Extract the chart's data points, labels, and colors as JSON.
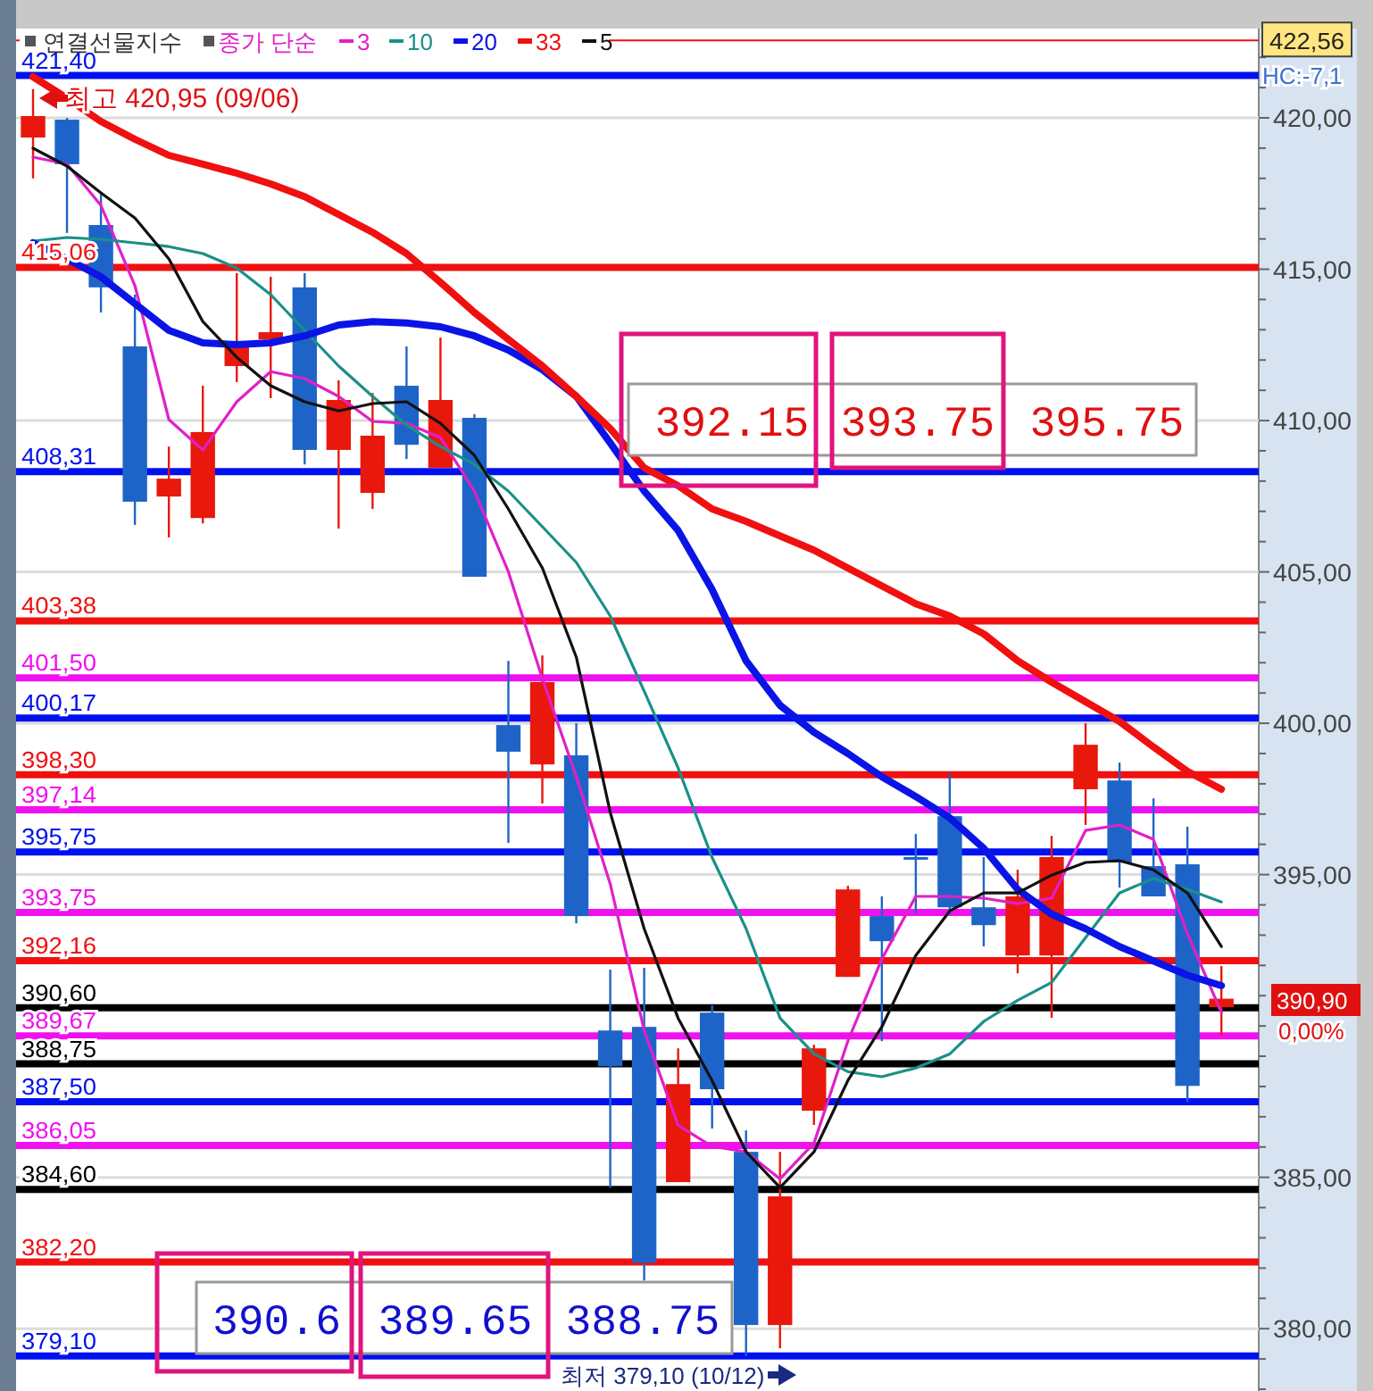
{
  "chart_data": {
    "type": "candlestick",
    "title": "연결선물지수",
    "legend_title": "종가 단순",
    "legend": "top left",
    "grid": "y",
    "categories": [
      null,
      null,
      null,
      null,
      null,
      null,
      null,
      null,
      null,
      null,
      null,
      null,
      null,
      null,
      null,
      null,
      null,
      null,
      null,
      null,
      null,
      null,
      null,
      null,
      null,
      null,
      null,
      null,
      null,
      null,
      null,
      null,
      null,
      null,
      null,
      null
    ],
    "ohlc": [
      [
        419.35,
        420.95,
        418.0,
        420.06
      ],
      [
        419.94,
        420.0,
        416.2,
        418.47
      ],
      [
        416.46,
        417.52,
        413.57,
        414.4
      ],
      [
        412.45,
        414.16,
        406.55,
        407.32
      ],
      [
        407.49,
        409.14,
        406.14,
        408.08
      ],
      [
        406.78,
        411.15,
        406.6,
        409.62
      ],
      [
        411.8,
        414.87,
        411.27,
        412.57
      ],
      [
        412.68,
        414.75,
        410.74,
        412.92
      ],
      [
        414.4,
        414.87,
        408.55,
        409.03
      ],
      [
        409.03,
        411.33,
        406.43,
        410.68
      ],
      [
        407.61,
        410.91,
        407.08,
        409.5
      ],
      [
        411.15,
        412.45,
        408.73,
        409.2
      ],
      [
        408.44,
        412.74,
        408.44,
        410.68
      ],
      [
        410.09,
        410.21,
        404.84,
        404.84
      ],
      [
        399.94,
        402.06,
        396.05,
        399.06
      ],
      [
        398.64,
        402.24,
        397.35,
        401.36
      ],
      [
        398.94,
        400.0,
        393.39,
        393.63
      ],
      [
        389.85,
        391.86,
        384.66,
        388.67
      ],
      [
        389.97,
        391.92,
        381.59,
        382.18
      ],
      [
        384.84,
        389.26,
        384.84,
        388.08
      ],
      [
        390.44,
        390.68,
        386.61,
        387.91
      ],
      [
        385.84,
        386.55,
        379.1,
        380.12
      ],
      [
        380.12,
        385.84,
        379.35,
        384.37
      ],
      [
        387.2,
        389.38,
        386.73,
        389.26
      ],
      [
        391.62,
        394.63,
        391.62,
        394.51
      ],
      [
        393.63,
        394.28,
        389.5,
        392.8
      ],
      [
        395.58,
        396.34,
        393.69,
        395.52
      ],
      [
        396.93,
        398.35,
        393.69,
        393.92
      ],
      [
        393.92,
        395.58,
        392.63,
        393.33
      ],
      [
        392.33,
        395.16,
        391.74,
        394.28
      ],
      [
        392.33,
        396.28,
        390.27,
        395.58
      ],
      [
        397.82,
        400.0,
        396.64,
        399.29
      ],
      [
        398.11,
        398.7,
        394.57,
        395.4
      ],
      [
        395.28,
        397.52,
        394.28,
        394.28
      ],
      [
        395.34,
        396.58,
        387.49,
        388.02
      ],
      [
        390.62,
        391.98,
        389.68,
        390.9
      ]
    ],
    "colors": [
      "#e8180c",
      "#1e64c8",
      "#1e64c8",
      "#1e64c8",
      "#e8180c",
      "#e8180c",
      "#e8180c",
      "#e8180c",
      "#1e64c8",
      "#e8180c",
      "#e8180c",
      "#1e64c8",
      "#e8180c",
      "#1e64c8",
      "#1e64c8",
      "#e8180c",
      "#1e64c8",
      "#1e64c8",
      "#1e64c8",
      "#e8180c",
      "#1e64c8",
      "#1e64c8",
      "#e8180c",
      "#e8180c",
      "#e8180c",
      "#1e64c8",
      "#1e64c8",
      "#1e64c8",
      "#1e64c8",
      "#e8180c",
      "#e8180c",
      "#e8180c",
      "#1e64c8",
      "#1e64c8",
      "#1e64c8",
      "#e8180c"
    ],
    "series": [
      {
        "name": "3",
        "type": "line",
        "color": "#e020c8",
        "values": [
          418.7,
          418.47,
          417.11,
          414.45,
          410.03,
          409.03,
          410.62,
          411.62,
          411.39,
          410.8,
          409.97,
          409.91,
          409.44,
          407.67,
          405.01,
          401.47,
          398.23,
          394.69,
          389.85,
          386.72,
          386.02,
          385.84,
          384.95,
          386.13,
          389.5,
          392.21,
          394.28,
          394.28,
          394.22,
          394.04,
          394.22,
          396.46,
          396.64,
          396.17,
          393.04,
          390.44
        ]
      },
      {
        "name": "10",
        "type": "line",
        "color": "#1a9088",
        "values": [
          415.93,
          416.05,
          415.99,
          415.87,
          415.75,
          415.52,
          415.04,
          414.16,
          412.98,
          411.8,
          410.8,
          409.85,
          409.14,
          408.55,
          407.67,
          406.49,
          405.31,
          403.54,
          401.06,
          398.52,
          395.57,
          393.21,
          390.26,
          389.08,
          388.49,
          388.32,
          388.61,
          389.08,
          390.15,
          390.85,
          391.44,
          392.92,
          394.39,
          394.87,
          394.51,
          394.1
        ]
      },
      {
        "name": "20",
        "type": "line",
        "color": "#0a14e6",
        "values": [
          415.87,
          415.34,
          414.75,
          413.86,
          412.98,
          412.57,
          412.51,
          412.57,
          412.8,
          413.16,
          413.27,
          413.22,
          413.1,
          412.8,
          412.33,
          411.68,
          410.8,
          409.26,
          407.67,
          406.37,
          404.42,
          402.06,
          400.59,
          399.7,
          399.0,
          398.23,
          397.58,
          396.87,
          395.87,
          394.51,
          393.69,
          393.21,
          392.62,
          392.15,
          391.68,
          391.33
        ]
      },
      {
        "name": "33",
        "type": "line",
        "color": "#f01010",
        "values": [
          421.36,
          420.65,
          419.88,
          419.29,
          418.76,
          418.47,
          418.17,
          417.82,
          417.4,
          416.81,
          416.22,
          415.52,
          414.57,
          413.57,
          412.68,
          411.8,
          410.8,
          409.73,
          408.44,
          407.85,
          407.08,
          406.67,
          406.19,
          405.72,
          405.13,
          404.54,
          403.95,
          403.54,
          402.95,
          402.06,
          401.36,
          400.71,
          400.06,
          399.22,
          398.41,
          397.82
        ]
      },
      {
        "name": "5",
        "type": "line",
        "color": "#111111",
        "values": [
          419.0,
          418.41,
          417.52,
          416.69,
          415.34,
          413.27,
          412.09,
          411.15,
          410.62,
          410.32,
          410.56,
          410.62,
          409.91,
          408.85,
          407.08,
          405.13,
          402.18,
          397.05,
          393.21,
          390.26,
          388.2,
          385.84,
          384.66,
          385.84,
          388.2,
          389.97,
          392.33,
          393.8,
          394.39,
          394.39,
          394.98,
          395.4,
          395.46,
          395.16,
          394.39,
          392.62
        ]
      }
    ],
    "ylim": [
      377.94,
      422.95
    ],
    "yticks": [
      {
        "value": 378,
        "label": null
      },
      {
        "value": 379,
        "label": null
      },
      {
        "value": 380,
        "label": "380,00"
      },
      {
        "value": 381,
        "label": null
      },
      {
        "value": 382,
        "label": null
      },
      {
        "value": 383,
        "label": null
      },
      {
        "value": 384,
        "label": null
      },
      {
        "value": 385,
        "label": "385,00"
      },
      {
        "value": 386,
        "label": null
      },
      {
        "value": 387,
        "label": null
      },
      {
        "value": 388,
        "label": null
      },
      {
        "value": 389,
        "label": null
      },
      {
        "value": 390,
        "label": null
      },
      {
        "value": 391,
        "label": null
      },
      {
        "value": 392,
        "label": null
      },
      {
        "value": 393,
        "label": null
      },
      {
        "value": 394,
        "label": null
      },
      {
        "value": 395,
        "label": "395,00"
      },
      {
        "value": 396,
        "label": null
      },
      {
        "value": 397,
        "label": null
      },
      {
        "value": 398,
        "label": null
      },
      {
        "value": 399,
        "label": null
      },
      {
        "value": 400,
        "label": "400,00"
      },
      {
        "value": 401,
        "label": null
      },
      {
        "value": 402,
        "label": null
      },
      {
        "value": 403,
        "label": null
      },
      {
        "value": 404,
        "label": null
      },
      {
        "value": 405,
        "label": "405,00"
      },
      {
        "value": 406,
        "label": null
      },
      {
        "value": 407,
        "label": null
      },
      {
        "value": 408,
        "label": null
      },
      {
        "value": 409,
        "label": null
      },
      {
        "value": 410,
        "label": "410,00"
      },
      {
        "value": 411,
        "label": null
      },
      {
        "value": 412,
        "label": null
      },
      {
        "value": 413,
        "label": null
      },
      {
        "value": 414,
        "label": null
      },
      {
        "value": 415,
        "label": "415,00"
      },
      {
        "value": 416,
        "label": null
      },
      {
        "value": 417,
        "label": null
      },
      {
        "value": 418,
        "label": null
      },
      {
        "value": 419,
        "label": null
      },
      {
        "value": 420,
        "label": "420,00"
      },
      {
        "value": 421,
        "label": null
      },
      {
        "value": 422,
        "label": null
      }
    ],
    "ref_lines": [
      {
        "axis": "y",
        "value": 422.56,
        "label": "422,56",
        "color": "#f01010",
        "line_style": "solid"
      },
      {
        "axis": "y",
        "value": 421.4,
        "label": "421,40",
        "color": "#0010f0"
      },
      {
        "axis": "y",
        "value": 415.06,
        "label": "415,06",
        "color": "#f01010"
      },
      {
        "axis": "y",
        "value": 408.31,
        "label": "408,31",
        "color": "#0010f0"
      },
      {
        "axis": "y",
        "value": 403.38,
        "label": "403,38",
        "color": "#f01010"
      },
      {
        "axis": "y",
        "value": 401.5,
        "label": "401,50",
        "color": "#f010f0"
      },
      {
        "axis": "y",
        "value": 400.17,
        "label": "400,17",
        "color": "#0010f0"
      },
      {
        "axis": "y",
        "value": 398.3,
        "label": "398,30",
        "color": "#f01010"
      },
      {
        "axis": "y",
        "value": 397.14,
        "label": "397,14",
        "color": "#f010f0"
      },
      {
        "axis": "y",
        "value": 395.75,
        "label": "395,75",
        "color": "#0010f0"
      },
      {
        "axis": "y",
        "value": 393.75,
        "label": "393,75",
        "color": "#f010f0"
      },
      {
        "axis": "y",
        "value": 392.16,
        "label": "392,16",
        "color": "#f01010"
      },
      {
        "axis": "y",
        "value": 390.6,
        "label": "390,60",
        "color": "#000000"
      },
      {
        "axis": "y",
        "value": 389.67,
        "label": "389,67",
        "color": "#f010f0"
      },
      {
        "axis": "y",
        "value": 388.75,
        "label": "388,75",
        "color": "#000000"
      },
      {
        "axis": "y",
        "value": 387.5,
        "label": "387,50",
        "color": "#0010f0"
      },
      {
        "axis": "y",
        "value": 386.05,
        "label": "386,05",
        "color": "#f010f0"
      },
      {
        "axis": "y",
        "value": 384.6,
        "label": "384,60",
        "color": "#000000"
      },
      {
        "axis": "y",
        "value": 382.2,
        "label": "382,20",
        "color": "#f01010"
      },
      {
        "axis": "y",
        "value": 379.1,
        "label": "379,10",
        "color": "#0010f0"
      }
    ],
    "annotations": [
      "최고 420,95 (09/06)",
      "최저 379,10 (10/12)",
      "392.15 393.75 395.75",
      "390.6 389.65 388.75",
      "390,90",
      "0,00%",
      "HC:-7,1"
    ]
  }
}
